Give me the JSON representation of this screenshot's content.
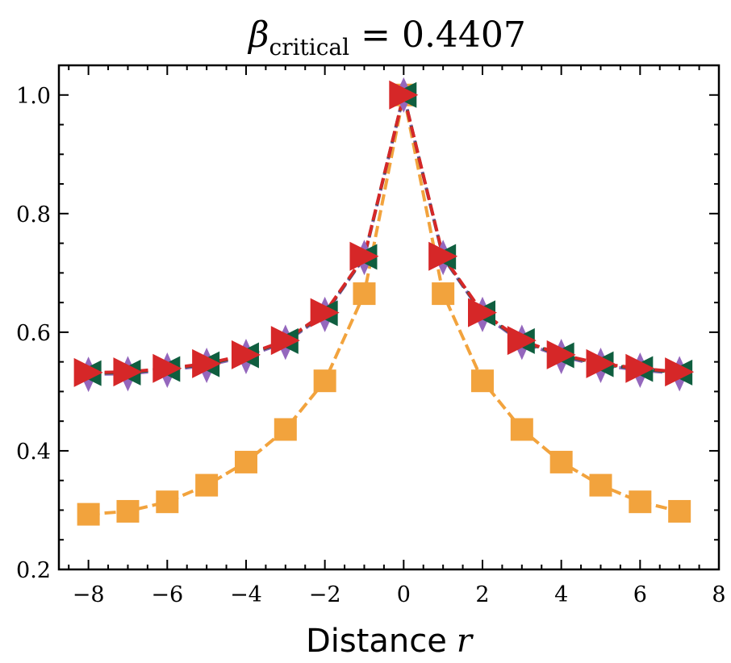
{
  "chart_data": {
    "type": "line",
    "title": {
      "symbol": "β",
      "subscript": "critical",
      "equals": "=",
      "value": "0.4407"
    },
    "xlabel": {
      "text": "Distance",
      "variable": "r"
    },
    "ylabel": "",
    "xlim": [
      -8.75,
      8
    ],
    "ylim": [
      0.2,
      1.05
    ],
    "xticks": [
      -8,
      -6,
      -4,
      -2,
      0,
      2,
      4,
      6,
      8
    ],
    "xtick_labels": [
      "−8",
      "−6",
      "−4",
      "−2",
      "0",
      "2",
      "4",
      "6",
      "8"
    ],
    "xminor_step": 0.5,
    "yticks": [
      0.2,
      0.4,
      0.6,
      0.8,
      1.0
    ],
    "ytick_labels": [
      "0.2",
      "0.4",
      "0.6",
      "0.8",
      "1.0"
    ],
    "yminor_step": 0.05,
    "grid": false,
    "legend": null,
    "x": [
      -8,
      -7,
      -6,
      -5,
      -4,
      -3,
      -2,
      -1,
      0,
      1,
      2,
      3,
      4,
      5,
      6,
      7
    ],
    "series": [
      {
        "name": "series-orange-squares",
        "color": "#f2a33d",
        "marker": "square",
        "linestyle": "dashed",
        "values": [
          0.293,
          0.298,
          0.314,
          0.342,
          0.381,
          0.436,
          0.518,
          0.665,
          1.0,
          0.665,
          0.518,
          0.436,
          0.381,
          0.342,
          0.314,
          0.298
        ]
      },
      {
        "name": "series-purple-diamonds",
        "color": "#9467bd",
        "marker": "thin-diamond",
        "linestyle": "dashed",
        "values": [
          0.529,
          0.53,
          0.536,
          0.544,
          0.559,
          0.583,
          0.63,
          0.726,
          1.0,
          0.726,
          0.63,
          0.583,
          0.559,
          0.544,
          0.536,
          0.53
        ]
      },
      {
        "name": "series-green-left-triangles",
        "color": "#0f5e3f",
        "marker": "triangle-left",
        "linestyle": "dashed",
        "values": [
          0.531,
          0.532,
          0.538,
          0.546,
          0.561,
          0.585,
          0.632,
          0.727,
          1.0,
          0.727,
          0.632,
          0.585,
          0.561,
          0.546,
          0.538,
          0.532
        ]
      },
      {
        "name": "series-red-right-triangles",
        "color": "#d62728",
        "marker": "triangle-right",
        "linestyle": "dashed",
        "values": [
          0.532,
          0.533,
          0.539,
          0.547,
          0.562,
          0.586,
          0.633,
          0.728,
          1.0,
          0.728,
          0.633,
          0.586,
          0.562,
          0.547,
          0.539,
          0.533
        ]
      }
    ]
  }
}
